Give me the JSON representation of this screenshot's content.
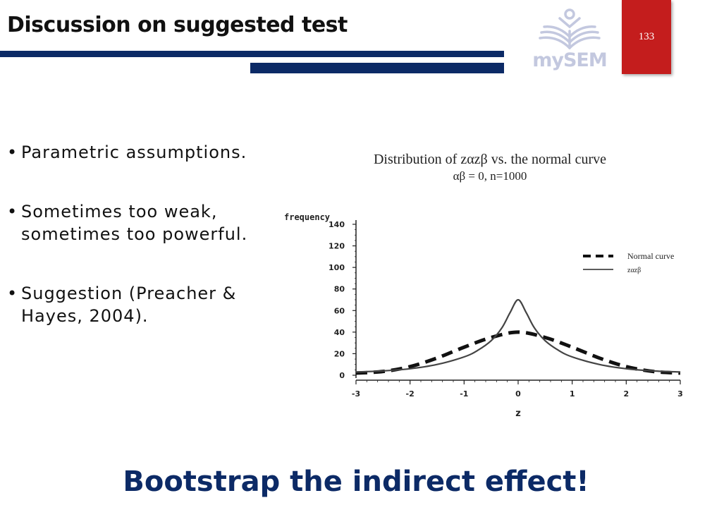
{
  "slide": {
    "title": "Discussion on suggested test",
    "page_number": "133",
    "logo_text": "mySEM",
    "bullets": [
      {
        "line1": "Parametric assumptions.",
        "line2": ""
      },
      {
        "line1": "Sometimes too weak,",
        "line2": "sometimes too powerful."
      },
      {
        "line1": "Suggestion (Preacher &",
        "line2": "Hayes, 2004)."
      }
    ],
    "bullet_glyph": "•",
    "punchline": "Bootstrap the indirect effect!",
    "colors": {
      "navy": "#0c2a66",
      "red": "#c41d1d",
      "logo": "#c3c8df"
    }
  },
  "chart_data": {
    "type": "line",
    "title": "Distribution of zαzβ vs.  the normal curve",
    "subtitle": "αβ = 0, n=1000",
    "xlabel": "z",
    "ylabel": "frequency",
    "xlim": [
      -3,
      3
    ],
    "ylim": [
      0,
      140
    ],
    "xticks": [
      "-3",
      "-2",
      "-1",
      "0",
      "1",
      "2",
      "3"
    ],
    "yticks": [
      "0",
      "20",
      "40",
      "60",
      "80",
      "100",
      "120",
      "140"
    ],
    "legend_position": "right",
    "series": [
      {
        "name": "Normal curve",
        "style": "dashed",
        "x": [
          -3,
          -2.5,
          -2,
          -1.5,
          -1,
          -0.5,
          0,
          0.5,
          1,
          1.5,
          2,
          2.5,
          3
        ],
        "y": [
          2,
          3.5,
          8,
          16,
          26,
          35,
          40,
          35,
          26,
          16,
          8,
          3.5,
          2
        ]
      },
      {
        "name": "zαzβ",
        "style": "solid",
        "x": [
          -3,
          -2.5,
          -2,
          -1.5,
          -1,
          -0.75,
          -0.5,
          -0.3,
          -0.15,
          0,
          0.15,
          0.3,
          0.5,
          0.75,
          1,
          1.5,
          2,
          2.5,
          3
        ],
        "y": [
          3,
          4,
          6,
          10,
          17,
          23,
          32,
          44,
          58,
          70,
          58,
          44,
          32,
          23,
          17,
          10,
          6,
          4,
          3
        ]
      }
    ]
  }
}
